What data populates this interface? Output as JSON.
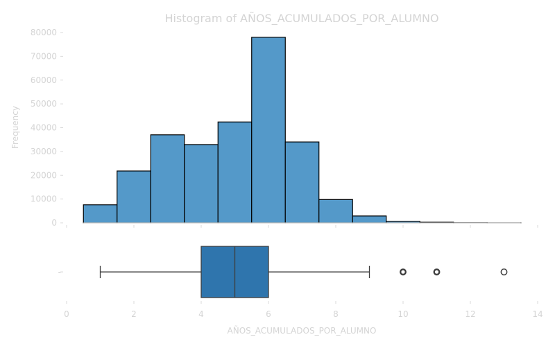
{
  "chart_data": {
    "type": "histogram",
    "title": "Histogram of AÑOS_ACUMULADOS_POR_ALUMNO",
    "xlabel": "AÑOS_ACUMULADOS_POR_ALUMNO",
    "ylabel": "Frequency",
    "xlim": [
      0,
      14
    ],
    "ylim": [
      0,
      80000
    ],
    "x_ticks": [
      "0",
      "2",
      "4",
      "6",
      "8",
      "10",
      "12",
      "14"
    ],
    "y_ticks": [
      "0",
      "10000",
      "20000",
      "30000",
      "40000",
      "50000",
      "60000",
      "70000",
      "80000"
    ],
    "boxplot_y_tick": "-",
    "bins": [
      {
        "start": 0.5,
        "end": 1.5,
        "count": 7600
      },
      {
        "start": 1.5,
        "end": 2.5,
        "count": 21800
      },
      {
        "start": 2.5,
        "end": 3.5,
        "count": 37000
      },
      {
        "start": 3.5,
        "end": 4.5,
        "count": 32900
      },
      {
        "start": 4.5,
        "end": 5.5,
        "count": 42400
      },
      {
        "start": 5.5,
        "end": 6.5,
        "count": 78000
      },
      {
        "start": 6.5,
        "end": 7.5,
        "count": 34000
      },
      {
        "start": 7.5,
        "end": 8.5,
        "count": 9800
      },
      {
        "start": 8.5,
        "end": 9.5,
        "count": 2900
      },
      {
        "start": 9.5,
        "end": 10.5,
        "count": 600
      },
      {
        "start": 10.5,
        "end": 11.5,
        "count": 250
      },
      {
        "start": 11.5,
        "end": 12.5,
        "count": 60
      },
      {
        "start": 12.5,
        "end": 13.5,
        "count": 20
      }
    ],
    "boxplot": {
      "whisker_low": 1,
      "q1": 4,
      "median": 5,
      "q3": 6,
      "whisker_high": 9,
      "outliers": [
        10,
        11,
        13
      ]
    },
    "colors": {
      "hist_bar": "#5499c9",
      "box_fill": "#2f75ad",
      "edge": "#000000",
      "box_line": "#3d3d3d",
      "text": "#d4d4d4",
      "axis": "#d9d9d9"
    }
  }
}
